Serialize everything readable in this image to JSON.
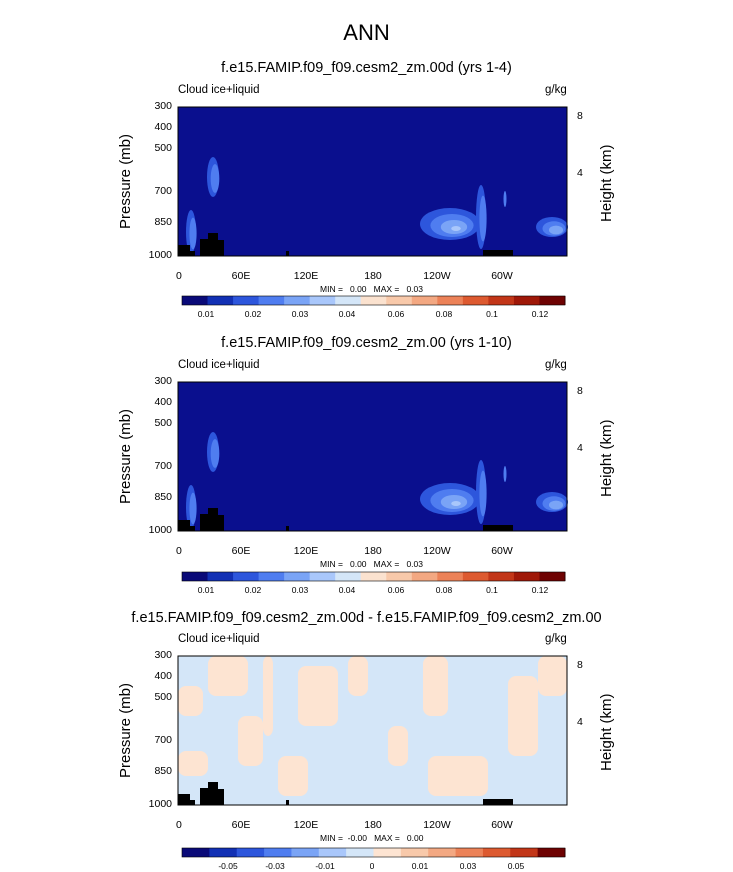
{
  "title": "ANN",
  "colors": {
    "background_main": "#0a0f8e",
    "diff_neutral": "#d4e6f8",
    "diff_positive": "#fde4d2",
    "land": "#000000",
    "seq_colorbar": [
      "#0a0a78",
      "#1230b4",
      "#2d56dc",
      "#4f7df0",
      "#7aa4f6",
      "#a9c7fb",
      "#d4e6f8",
      "#fbe2cf",
      "#f8c9aa",
      "#f3a882",
      "#ec8258",
      "#dd5a30",
      "#c23618",
      "#9f1808",
      "#6e0202"
    ],
    "div_colorbar": [
      "#0a0a78",
      "#1230b4",
      "#2d56dc",
      "#4f7df0",
      "#7aa4f6",
      "#a9c7fb",
      "#d4e6f8",
      "#fde4d2",
      "#f8c9aa",
      "#f3a882",
      "#ec8258",
      "#dd5a30",
      "#c23618",
      "#6e0202"
    ]
  },
  "chart_data": [
    {
      "type": "heatmap",
      "title": "f.e15.FAMIP.f09_f09.cesm2_zm.00d (yrs 1-4)",
      "variable": "Cloud ice+liquid",
      "units": "g/kg",
      "ylabel": "Pressure (mb)",
      "ylabel_right": "Height (km)",
      "yticks": [
        "300",
        "400",
        "500",
        "700",
        "850",
        "1000"
      ],
      "height_ticks": [
        "8",
        "4"
      ],
      "xticks": [
        "0",
        "60E",
        "120E",
        "180",
        "120W",
        "60W"
      ],
      "minmax": "MIN =   0.00   MAX =   0.03",
      "colorbar_labels": [
        "0.01",
        "0.02",
        "0.03",
        "0.04",
        "0.06",
        "0.08",
        "0.1",
        "0.12"
      ],
      "min": 0.0,
      "max": 0.03
    },
    {
      "type": "heatmap",
      "title": "f.e15.FAMIP.f09_f09.cesm2_zm.00 (yrs 1-10)",
      "variable": "Cloud ice+liquid",
      "units": "g/kg",
      "ylabel": "Pressure (mb)",
      "ylabel_right": "Height (km)",
      "yticks": [
        "300",
        "400",
        "500",
        "700",
        "850",
        "1000"
      ],
      "height_ticks": [
        "8",
        "4"
      ],
      "xticks": [
        "0",
        "60E",
        "120E",
        "180",
        "120W",
        "60W"
      ],
      "minmax": "MIN =   0.00   MAX =   0.03",
      "colorbar_labels": [
        "0.01",
        "0.02",
        "0.03",
        "0.04",
        "0.06",
        "0.08",
        "0.1",
        "0.12"
      ],
      "min": 0.0,
      "max": 0.03
    },
    {
      "type": "heatmap",
      "title": "f.e15.FAMIP.f09_f09.cesm2_zm.00d - f.e15.FAMIP.f09_f09.cesm2_zm.00",
      "variable": "Cloud ice+liquid",
      "units": "g/kg",
      "ylabel": "Pressure (mb)",
      "ylabel_right": "Height (km)",
      "yticks": [
        "300",
        "400",
        "500",
        "700",
        "850",
        "1000"
      ],
      "height_ticks": [
        "8",
        "4"
      ],
      "xticks": [
        "0",
        "60E",
        "120E",
        "180",
        "120W",
        "60W"
      ],
      "minmax": "MIN =  -0.00   MAX =   0.00",
      "colorbar_labels": [
        "-0.05",
        "-0.03",
        "-0.01",
        "0",
        "0.01",
        "0.03",
        "0.05"
      ],
      "min": -0.0,
      "max": 0.0
    }
  ]
}
